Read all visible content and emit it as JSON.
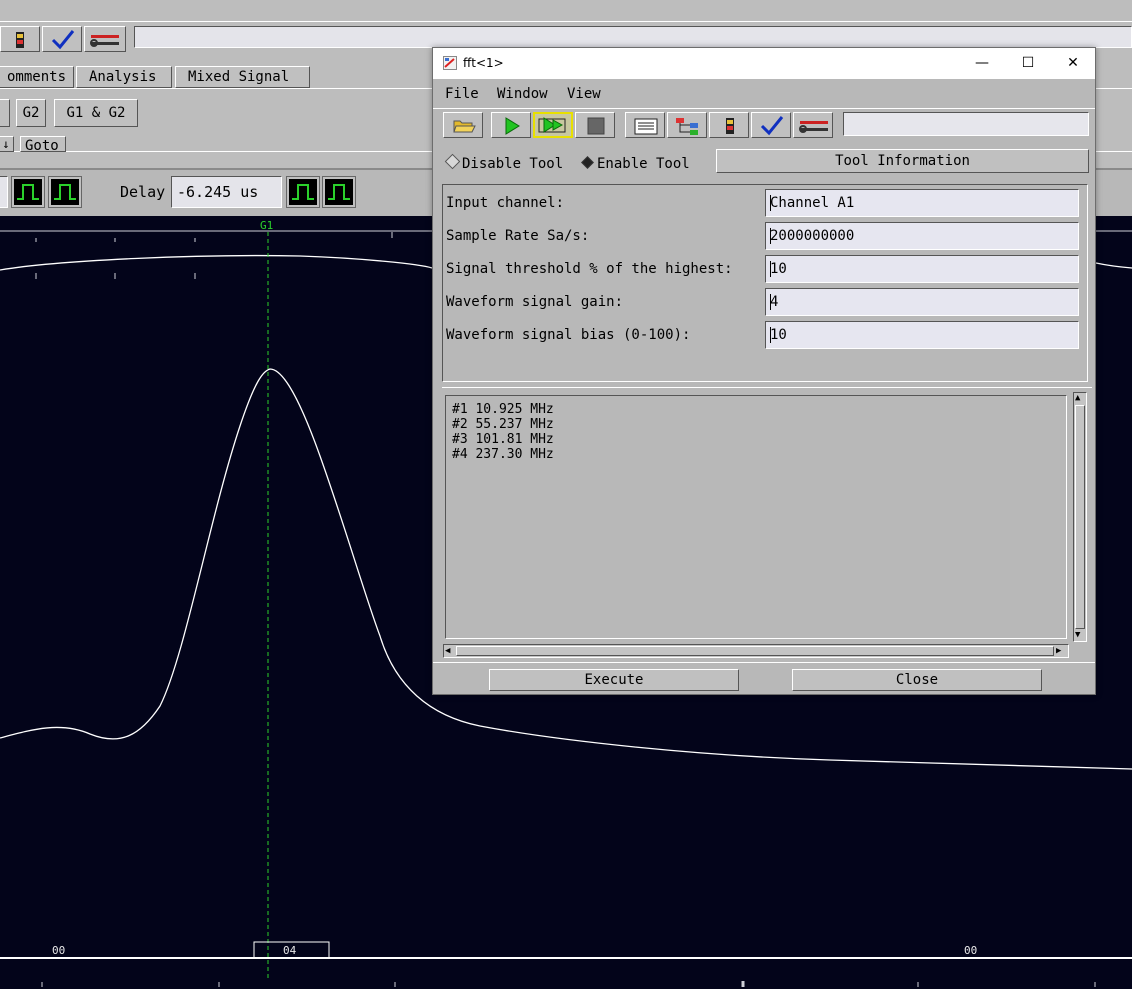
{
  "app": {
    "tabs": [
      "omments",
      "Analysis",
      "Mixed Signal"
    ],
    "group_buttons": [
      "G2",
      "G1 & G2"
    ],
    "goto_label": "Goto",
    "delay_label": "Delay",
    "delay_value": "-6.245 us",
    "marker_label": "G1",
    "axis_labels": [
      "00",
      "04",
      "00"
    ]
  },
  "dialog": {
    "title": "fft<1>",
    "window_controls": {
      "minimize": "—",
      "maximize": "☐",
      "close": "✕"
    },
    "menu": [
      "File",
      "Window",
      "View"
    ],
    "mode": {
      "disable_label": "Disable Tool",
      "enable_label": "Enable Tool",
      "selected": "enable"
    },
    "tool_information_label": "Tool Information",
    "fields": [
      {
        "label": "Input channel:",
        "value": "Channel A1"
      },
      {
        "label": "Sample Rate Sa/s:",
        "value": "2000000000"
      },
      {
        "label": "Signal threshold % of the highest:",
        "value": "10"
      },
      {
        "label": "Waveform signal gain:",
        "value": "4"
      },
      {
        "label": "Waveform signal bias (0-100):",
        "value": "10"
      }
    ],
    "results": [
      "#1 10.925 MHz",
      "#2 55.237 MHz",
      "#3 101.81 MHz",
      "#4 237.30 MHz"
    ],
    "execute_label": "Execute",
    "close_label": "Close"
  },
  "colors": {
    "scope_background": "#03041a",
    "waveform": "#ffffff",
    "marker": "#2bd12b",
    "panel": "#b8b8b8"
  }
}
